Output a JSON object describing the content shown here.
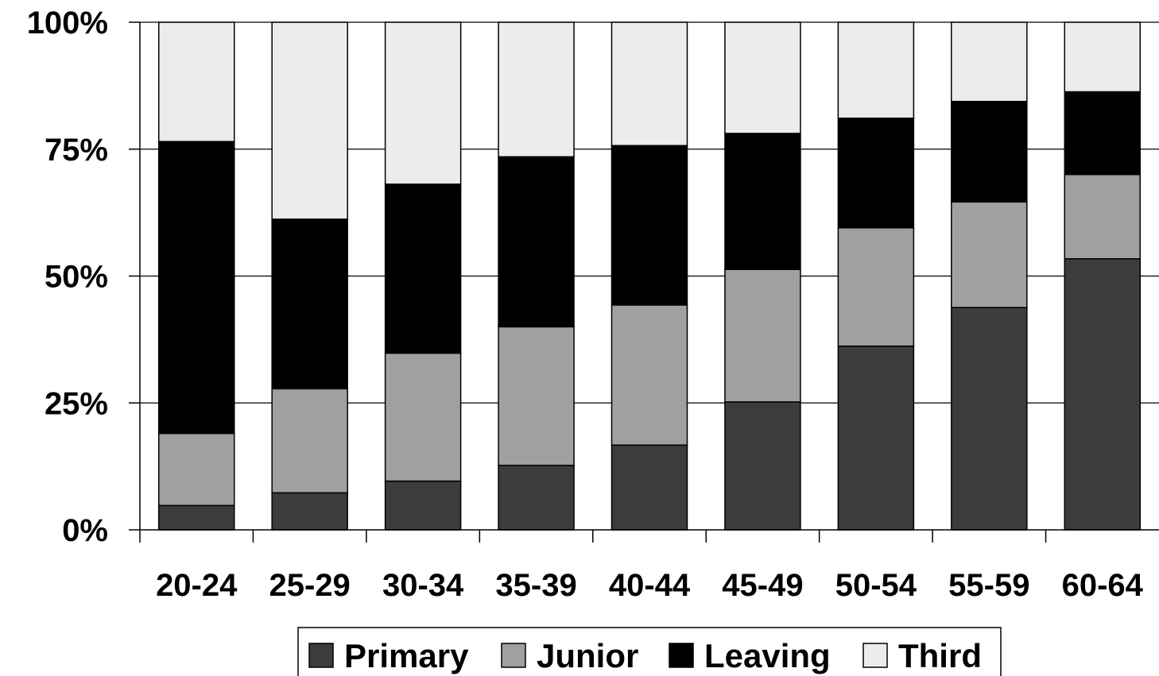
{
  "chart_data": {
    "type": "bar",
    "stacked": true,
    "normalized": true,
    "categories": [
      "20-24",
      "25-29",
      "30-34",
      "35-39",
      "40-44",
      "45-49",
      "50-54",
      "55-59",
      "60-64"
    ],
    "series": [
      {
        "name": "Primary",
        "color": "#3c3c3c",
        "values": [
          4.8,
          7.3,
          9.6,
          12.7,
          16.7,
          25.2,
          36.2,
          43.8,
          53.4
        ]
      },
      {
        "name": "Junior",
        "color": "#a0a0a0",
        "values": [
          14.2,
          20.5,
          25.2,
          27.3,
          27.6,
          26.1,
          23.3,
          20.8,
          16.6
        ]
      },
      {
        "name": "Leaving",
        "color": "#000000",
        "values": [
          57.5,
          33.4,
          33.3,
          33.5,
          31.4,
          26.8,
          21.6,
          19.8,
          16.3
        ]
      },
      {
        "name": "Third",
        "color": "#ececec",
        "values": [
          23.5,
          38.8,
          31.9,
          26.5,
          24.3,
          21.9,
          18.9,
          15.6,
          13.7
        ]
      }
    ],
    "y_ticks": [
      "0%",
      "25%",
      "50%",
      "75%",
      "100%"
    ],
    "ylim": [
      0,
      100
    ],
    "grid": true,
    "legend_position": "bottom"
  }
}
